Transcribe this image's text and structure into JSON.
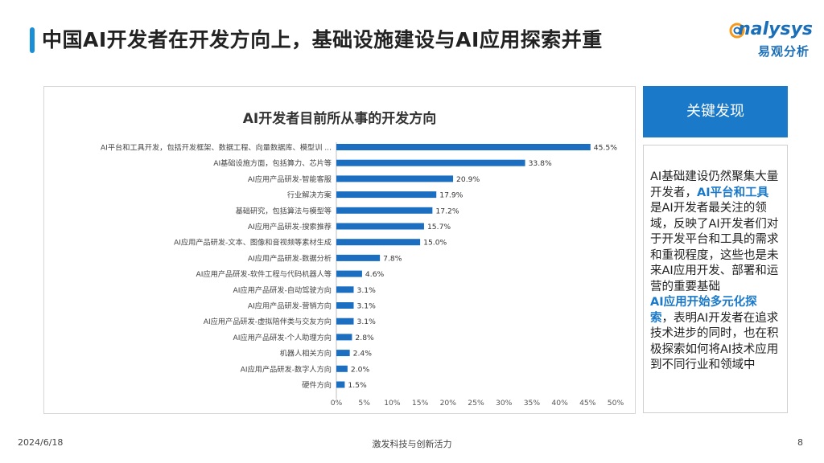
{
  "header": {
    "title": "中国AI开发者在开发方向上，基础设施建设与AI应用探索并重",
    "logo_en": "nalysys",
    "logo_cn": "易观分析"
  },
  "colors": {
    "accent": "#1a8fd6",
    "bar": "#1c6fc0",
    "findings_header": "#1a79c9",
    "highlight": "#1a79c9"
  },
  "chart_data": {
    "type": "bar",
    "orientation": "horizontal",
    "title": "AI开发者目前所从事的开发方向",
    "categories": [
      "AI平台和工具开发，包括开发框架、数据工程、向量数据库、模型训 ...",
      "AI基础设施方面，包括算力、芯片等",
      "AI应用产品研发-智能客服",
      "行业解决方案",
      "基础研究，包括算法与模型等",
      "AI应用产品研发-搜索推荐",
      "AI应用产品研发-文本、图像和音视频等素材生成",
      "AI应用产品研发-数据分析",
      "AI应用产品研发-软件工程与代码机器人等",
      "AI应用产品研发-自动驾驶方向",
      "AI应用产品研发-营销方向",
      "AI应用产品研发-虚拟陪伴类与交友方向",
      "AI应用产品研发-个人助理方向",
      "机器人相关方向",
      "AI应用产品研发-数字人方向",
      "硬件方向"
    ],
    "values": [
      45.5,
      33.8,
      20.9,
      17.9,
      17.2,
      15.7,
      15.0,
      7.8,
      4.6,
      3.1,
      3.1,
      3.1,
      2.8,
      2.4,
      2.0,
      1.5
    ],
    "value_labels": [
      "45.5%",
      "33.8%",
      "20.9%",
      "17.9%",
      "17.2%",
      "15.7%",
      "15.0%",
      "7.8%",
      "4.6%",
      "3.1%",
      "3.1%",
      "3.1%",
      "2.8%",
      "2.4%",
      "2.0%",
      "1.5%"
    ],
    "xlim": [
      0,
      50
    ],
    "xticks": [
      0,
      5,
      10,
      15,
      20,
      25,
      30,
      35,
      40,
      45,
      50
    ],
    "xtick_labels": [
      "0%",
      "5%",
      "10%",
      "15%",
      "20%",
      "25%",
      "30%",
      "35%",
      "40%",
      "45%",
      "50%"
    ],
    "grid": false,
    "legend": "none"
  },
  "findings": {
    "header": "关键发现",
    "p1_a": "AI基础建设仍然聚集大量开发者，",
    "p1_hl": "AI平台和工具",
    "p1_b": "是AI开发者最关注的领域，反映了AI开发者们对于开发平台和工具的需求和重视程度，这些也是未来AI应用开发、部署和运营的重要基础",
    "p2_hl": "AI应用开始多元化探索",
    "p2_b": "，表明AI开发者在追求技术进步的同时，也在积极探索如何将AI技术应用到不同行业和领域中"
  },
  "footer": {
    "date": "2024/6/18",
    "center": "激发科技与创新活力",
    "page": "8"
  }
}
